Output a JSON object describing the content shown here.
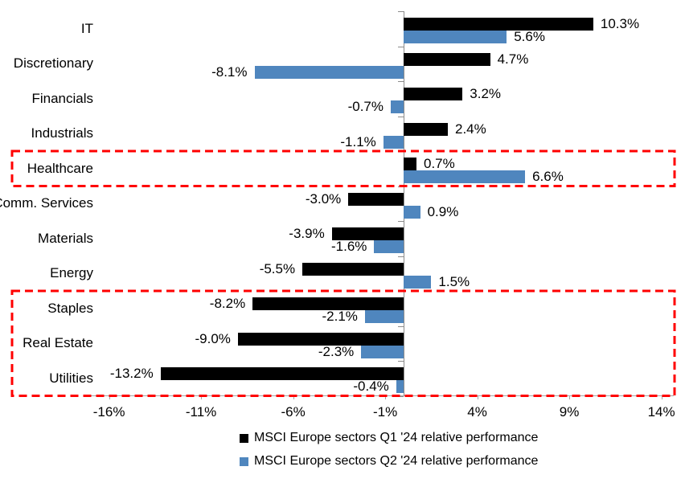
{
  "chart_data": {
    "type": "bar",
    "orientation": "horizontal",
    "categories": [
      "IT",
      "Discretionary",
      "Financials",
      "Industrials",
      "Healthcare",
      "Comm. Services",
      "Materials",
      "Energy",
      "Staples",
      "Real Estate",
      "Utilities"
    ],
    "series": [
      {
        "name": "MSCI Europe sectors Q1 '24 relative performance",
        "color": "#000000",
        "values": [
          10.3,
          4.7,
          3.2,
          2.4,
          0.7,
          -3.0,
          -3.9,
          -5.5,
          -8.2,
          -9.0,
          -13.2
        ],
        "labels": [
          "10.3%",
          "4.7%",
          "3.2%",
          "2.4%",
          "0.7%",
          "-3.0%",
          "-3.9%",
          "-5.5%",
          "-8.2%",
          "-9.0%",
          "-13.2%"
        ]
      },
      {
        "name": "MSCI Europe sectors Q2 '24 relative performance",
        "color": "#4f86be",
        "values": [
          5.6,
          -8.1,
          -0.7,
          -1.1,
          6.6,
          0.9,
          -1.6,
          1.5,
          -2.1,
          -2.3,
          -0.4
        ],
        "labels": [
          "5.6%",
          "-8.1%",
          "-0.7%",
          "-1.1%",
          "6.6%",
          "0.9%",
          "-1.6%",
          "1.5%",
          "-2.1%",
          "-2.3%",
          "-0.4%"
        ]
      }
    ],
    "x_axis": {
      "tick_values": [
        -16,
        -11,
        -6,
        -1,
        4,
        9,
        14
      ],
      "tick_labels": [
        "-16%",
        "-11%",
        "-6%",
        "-1%",
        "4%",
        "9%",
        "14%"
      ],
      "min": -17,
      "max": 14.6,
      "grid": false
    },
    "legend": [
      {
        "label": "MSCI Europe sectors Q1 '24 relative performance",
        "color": "#000000"
      },
      {
        "label": "MSCI Europe sectors Q2 '24 relative performance",
        "color": "#4f86be"
      }
    ],
    "legend_position": "bottom",
    "highlights": [
      {
        "categories": [
          "Healthcare"
        ],
        "color": "#ff0000"
      },
      {
        "categories": [
          "Staples",
          "Real Estate",
          "Utilities"
        ],
        "color": "#ff0000"
      }
    ]
  }
}
